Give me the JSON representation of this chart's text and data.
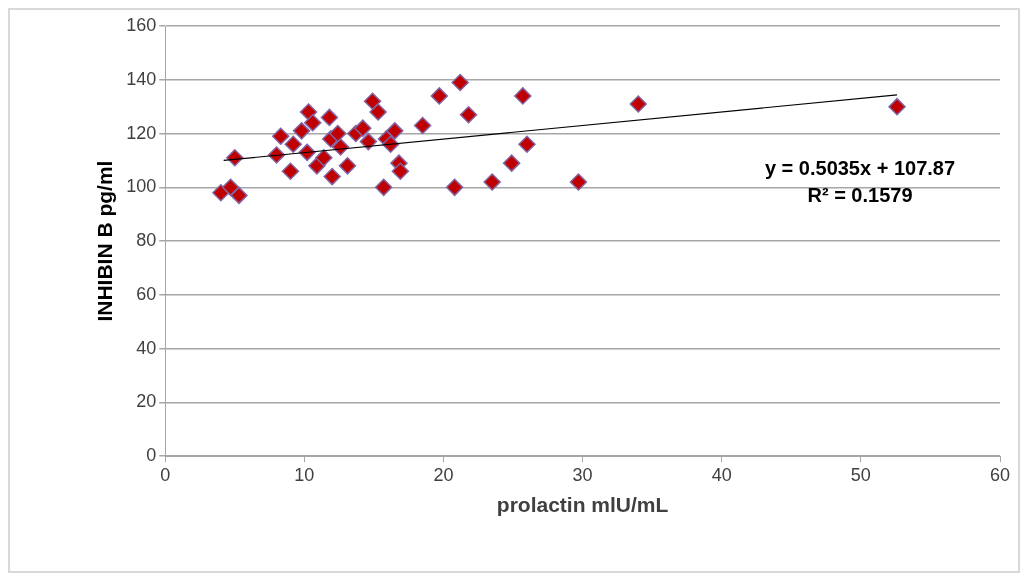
{
  "chart_data": {
    "type": "scatter",
    "xlabel": "prolactin mlU/mL",
    "ylabel": "INHIBIN B pg/ml",
    "xlim": [
      0,
      60
    ],
    "xticks": [
      0,
      10,
      20,
      30,
      40,
      50,
      60
    ],
    "ylim": [
      0,
      160
    ],
    "yticks": [
      0,
      20,
      40,
      60,
      80,
      100,
      120,
      140,
      160
    ],
    "grid": "y",
    "legend": false,
    "series": [
      {
        "type": "scatter",
        "marker": "diamond",
        "color": "#c00000",
        "x": [
          4.0,
          4.7,
          5.0,
          5.3,
          8.0,
          8.3,
          9.0,
          9.2,
          9.8,
          10.3,
          10.2,
          10.6,
          10.9,
          11.4,
          11.8,
          11.9,
          12.0,
          12.4,
          12.6,
          13.1,
          13.7,
          14.2,
          14.6,
          14.9,
          15.3,
          15.7,
          15.9,
          16.2,
          16.5,
          16.8,
          16.9,
          18.5,
          19.7,
          21.2,
          20.8,
          21.8,
          23.5,
          24.9,
          25.7,
          26.0,
          29.7,
          34.0,
          52.6
        ],
        "values": [
          98,
          100,
          111,
          97,
          112,
          119,
          106,
          116,
          121,
          128,
          113,
          124,
          108,
          111,
          126,
          118,
          104,
          120,
          115,
          108,
          120,
          122,
          117,
          132,
          128,
          100,
          118,
          116,
          121,
          109,
          106,
          123,
          134,
          139,
          100,
          127,
          102,
          109,
          134,
          116,
          102,
          131,
          130
        ]
      },
      {
        "type": "line",
        "marker": "none",
        "color": "#000000",
        "x": [
          4.2,
          52.6
        ],
        "values": [
          110,
          134.4
        ]
      }
    ],
    "annotations": [
      "y = 0.5035x + 107.87",
      "R² = 0.1579"
    ]
  }
}
